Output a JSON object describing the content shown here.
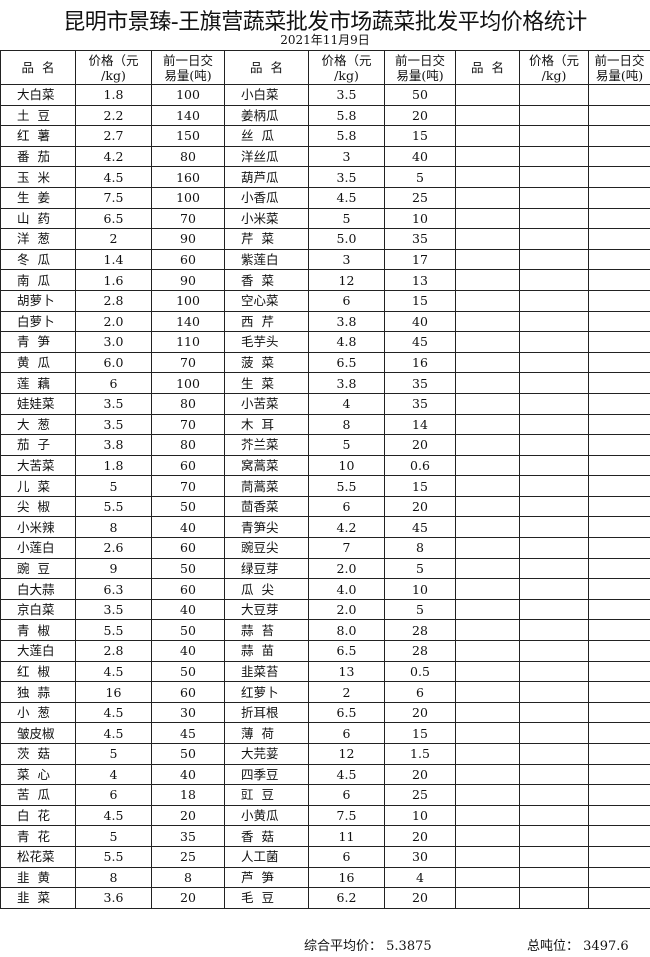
{
  "title": "昆明市景臻-王旗营蔬菜批发市场蔬菜批发平均价格统计",
  "date": "2021年11月9日",
  "headers": {
    "name": "品  名",
    "price": "价格（元\n/kg)",
    "volume": "前一日交\n易量(吨)"
  },
  "rows": [
    [
      [
        "大白菜",
        "1.8",
        "100"
      ],
      [
        "小白菜",
        "3.5",
        "50"
      ]
    ],
    [
      [
        "土  豆",
        "2.2",
        "140"
      ],
      [
        "姜柄瓜",
        "5.8",
        "20"
      ]
    ],
    [
      [
        "红  薯",
        "2.7",
        "150"
      ],
      [
        "丝  瓜",
        "5.8",
        "15"
      ]
    ],
    [
      [
        "番  茄",
        "4.2",
        "80"
      ],
      [
        "洋丝瓜",
        "3",
        "40"
      ]
    ],
    [
      [
        "玉  米",
        "4.5",
        "160"
      ],
      [
        "葫芦瓜",
        "3.5",
        "5"
      ]
    ],
    [
      [
        "生  姜",
        "7.5",
        "100"
      ],
      [
        "小香瓜",
        "4.5",
        "25"
      ]
    ],
    [
      [
        "山  药",
        "6.5",
        "70"
      ],
      [
        "小米菜",
        "5",
        "10"
      ]
    ],
    [
      [
        "洋  葱",
        "2",
        "90"
      ],
      [
        "芹  菜",
        "5.0",
        "35"
      ]
    ],
    [
      [
        "冬  瓜",
        "1.4",
        "60"
      ],
      [
        "紫莲白",
        "3",
        "17"
      ]
    ],
    [
      [
        "南  瓜",
        "1.6",
        "90"
      ],
      [
        "香  菜",
        "12",
        "13"
      ]
    ],
    [
      [
        "胡萝卜",
        "2.8",
        "100"
      ],
      [
        "空心菜",
        "6",
        "15"
      ]
    ],
    [
      [
        "白萝卜",
        "2.0",
        "140"
      ],
      [
        "西  芹",
        "3.8",
        "40"
      ]
    ],
    [
      [
        "青  笋",
        "3.0",
        "110"
      ],
      [
        "毛芋头",
        "4.8",
        "45"
      ]
    ],
    [
      [
        "黄  瓜",
        "6.0",
        "70"
      ],
      [
        "菠  菜",
        "6.5",
        "16"
      ]
    ],
    [
      [
        "莲  藕",
        "6",
        "100"
      ],
      [
        "生  菜",
        "3.8",
        "35"
      ]
    ],
    [
      [
        "娃娃菜",
        "3.5",
        "80"
      ],
      [
        "小苦菜",
        "4",
        "35"
      ]
    ],
    [
      [
        "大  葱",
        "3.5",
        "70"
      ],
      [
        "木  耳",
        "8",
        "14"
      ]
    ],
    [
      [
        "茄  子",
        "3.8",
        "80"
      ],
      [
        "芥兰菜",
        "5",
        "20"
      ]
    ],
    [
      [
        "大苦菜",
        "1.8",
        "60"
      ],
      [
        "窝蒿菜",
        "10",
        "0.6"
      ]
    ],
    [
      [
        "儿  菜",
        "5",
        "70"
      ],
      [
        "茼蒿菜",
        "5.5",
        "15"
      ]
    ],
    [
      [
        "尖  椒",
        "5.5",
        "50"
      ],
      [
        "茴香菜",
        "6",
        "20"
      ]
    ],
    [
      [
        "小米辣",
        "8",
        "40"
      ],
      [
        "青笋尖",
        "4.2",
        "45"
      ]
    ],
    [
      [
        "小莲白",
        "2.6",
        "60"
      ],
      [
        "豌豆尖",
        "7",
        "8"
      ]
    ],
    [
      [
        "豌  豆",
        "9",
        "50"
      ],
      [
        "绿豆芽",
        "2.0",
        "5"
      ]
    ],
    [
      [
        "白大蒜",
        "6.3",
        "60"
      ],
      [
        "瓜  尖",
        "4.0",
        "10"
      ]
    ],
    [
      [
        "京白菜",
        "3.5",
        "40"
      ],
      [
        "大豆芽",
        "2.0",
        "5"
      ]
    ],
    [
      [
        "青  椒",
        "5.5",
        "50"
      ],
      [
        "蒜  苔",
        "8.0",
        "28"
      ]
    ],
    [
      [
        "大莲白",
        "2.8",
        "40"
      ],
      [
        "蒜  苗",
        "6.5",
        "28"
      ]
    ],
    [
      [
        "红  椒",
        "4.5",
        "50"
      ],
      [
        "韭菜苔",
        "13",
        "0.5"
      ]
    ],
    [
      [
        "独  蒜",
        "16",
        "60"
      ],
      [
        "红萝卜",
        "2",
        "6"
      ]
    ],
    [
      [
        "小  葱",
        "4.5",
        "30"
      ],
      [
        "折耳根",
        "6.5",
        "20"
      ]
    ],
    [
      [
        "皱皮椒",
        "4.5",
        "45"
      ],
      [
        "薄  荷",
        "6",
        "15"
      ]
    ],
    [
      [
        "茨  菇",
        "5",
        "50"
      ],
      [
        "大芫荽",
        "12",
        "1.5"
      ]
    ],
    [
      [
        "菜  心",
        "4",
        "40"
      ],
      [
        "四季豆",
        "4.5",
        "20"
      ]
    ],
    [
      [
        "苦  瓜",
        "6",
        "18"
      ],
      [
        "豇  豆",
        "6",
        "25"
      ]
    ],
    [
      [
        "白  花",
        "4.5",
        "20"
      ],
      [
        "小黄瓜",
        "7.5",
        "10"
      ]
    ],
    [
      [
        "青  花",
        "5",
        "35"
      ],
      [
        "香  菇",
        "11",
        "20"
      ]
    ],
    [
      [
        "松花菜",
        "5.5",
        "25"
      ],
      [
        "人工菌",
        "6",
        "30"
      ]
    ],
    [
      [
        "韭  黄",
        "8",
        "8"
      ],
      [
        "芦  笋",
        "16",
        "4"
      ]
    ],
    [
      [
        "韭  菜",
        "3.6",
        "20"
      ],
      [
        "毛  豆",
        "6.2",
        "20"
      ]
    ]
  ],
  "footer": {
    "avg_label": "综合平均价：",
    "avg_value": "5.3875",
    "total_label": "总吨位：",
    "total_value": "3497.6"
  }
}
